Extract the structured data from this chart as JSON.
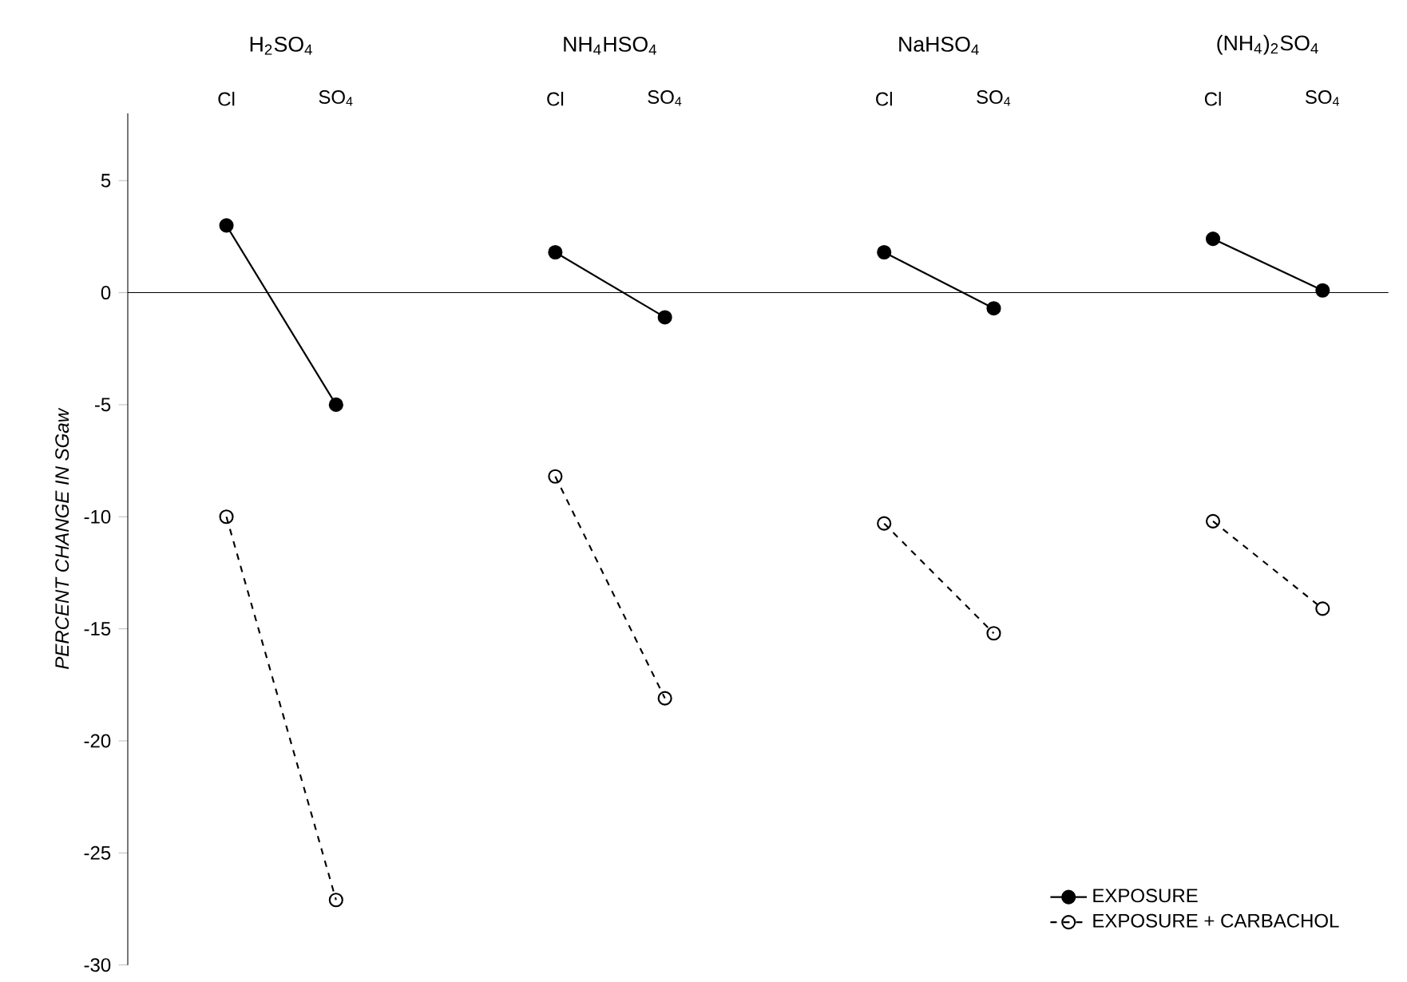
{
  "chart_data": {
    "type": "line",
    "ylabel": "PERCENT CHANGE IN SGaw",
    "categories": [
      "Cl",
      "SO$_{4}$",
      null,
      "Cl",
      "SO$_{4}$",
      null,
      "Cl",
      "SO$_{4}$",
      null,
      "Cl",
      "SO$_{4}$"
    ],
    "annotations": [
      "H$_{2}$SO$_{4}$",
      "NH$_{4}$HSO$_{4}$",
      "NaHSO$_{4}$",
      "(NH$_{4}$)$_{2}$SO$_{4}$"
    ],
    "series": [
      {
        "name": "EXPOSURE",
        "color": "#000000",
        "line_style": "solid",
        "values": [
          3,
          -5,
          null,
          1.8,
          -1.1,
          null,
          1.8,
          -0.7,
          null,
          2.4,
          0.1
        ]
      },
      {
        "name": "EXPOSURE + CARBACHOL",
        "color": "#000000",
        "line_style": "dashed",
        "values": [
          -10,
          -27.1,
          null,
          -8.2,
          -18.1,
          null,
          -10.3,
          -15.2,
          null,
          -10.2,
          -14.1
        ]
      }
    ],
    "marker": "circle",
    "ylim": [
      -30,
      8
    ],
    "yticks": [
      -30,
      -25,
      -20,
      -15,
      -10,
      -5,
      0,
      5
    ],
    "ref_lines": [
      {
        "axis": "y",
        "value": 0
      }
    ],
    "grid": false,
    "legend": "bottom right"
  }
}
